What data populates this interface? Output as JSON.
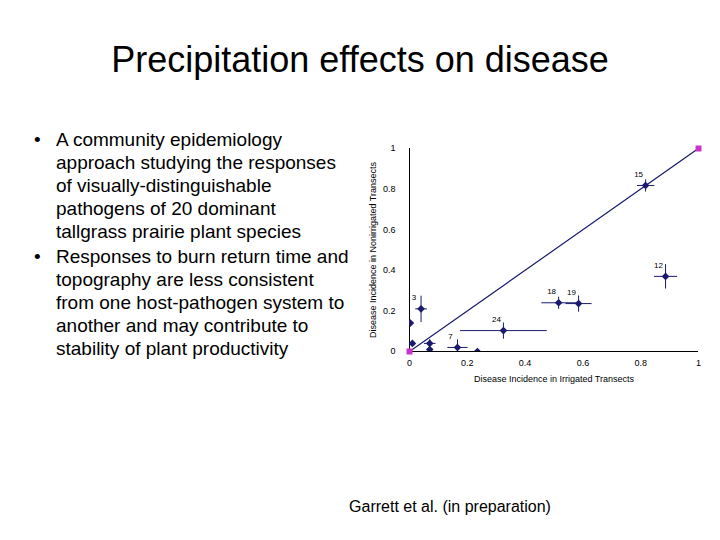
{
  "slide": {
    "title": "Precipitation effects on disease",
    "bullets": [
      "A community epidemiology approach studying the responses of visually-distinguishable pathogens of 20 dominant tallgrass prairie plant species",
      "Responses to burn return time and topography are less consistent from one host-pathogen system to another and may contribute to stability of plant productivity"
    ],
    "caption": "Garrett et al. (in preparation)"
  },
  "chart_data": {
    "type": "scatter",
    "x_label": "Disease Incidence in Irrigated Transects",
    "y_label": "Disease Incidence in Nonirrigated Transects",
    "xlim": [
      0,
      1
    ],
    "ylim": [
      0,
      1
    ],
    "xticks": [
      0,
      0.2,
      0.4,
      0.6,
      0.8,
      1
    ],
    "yticks": [
      0,
      0.2,
      0.4,
      0.6,
      0.8,
      1
    ],
    "grid": false,
    "color": "#1a1a6e",
    "marker": "diamond",
    "points": {
      "labels": [
        "15",
        "12",
        "18",
        "19",
        "24",
        "3",
        "7",
        null,
        null,
        null,
        null,
        null
      ],
      "x": [
        0.817,
        0.886,
        0.516,
        0.585,
        0.325,
        0.04,
        0.166,
        0.003,
        0.07,
        0.235,
        0.07,
        0.01
      ],
      "y": [
        0.818,
        0.37,
        0.24,
        0.236,
        0.103,
        0.21,
        0.02,
        0.14,
        0.04,
        0.0,
        0.01,
        0.04
      ],
      "x_error": [
        0.03,
        0.04,
        0.06,
        0.045,
        0.15,
        0.02,
        0.035,
        0,
        0.02,
        0,
        0,
        0
      ],
      "y_error": [
        0.03,
        0.06,
        0.03,
        0.04,
        0.04,
        0.065,
        0.04,
        0,
        0.02,
        0,
        0,
        0
      ]
    },
    "reference_line": {
      "x": [
        0,
        1
      ],
      "y": [
        0,
        1
      ],
      "color": "#cc33cc",
      "marker": "square"
    }
  }
}
